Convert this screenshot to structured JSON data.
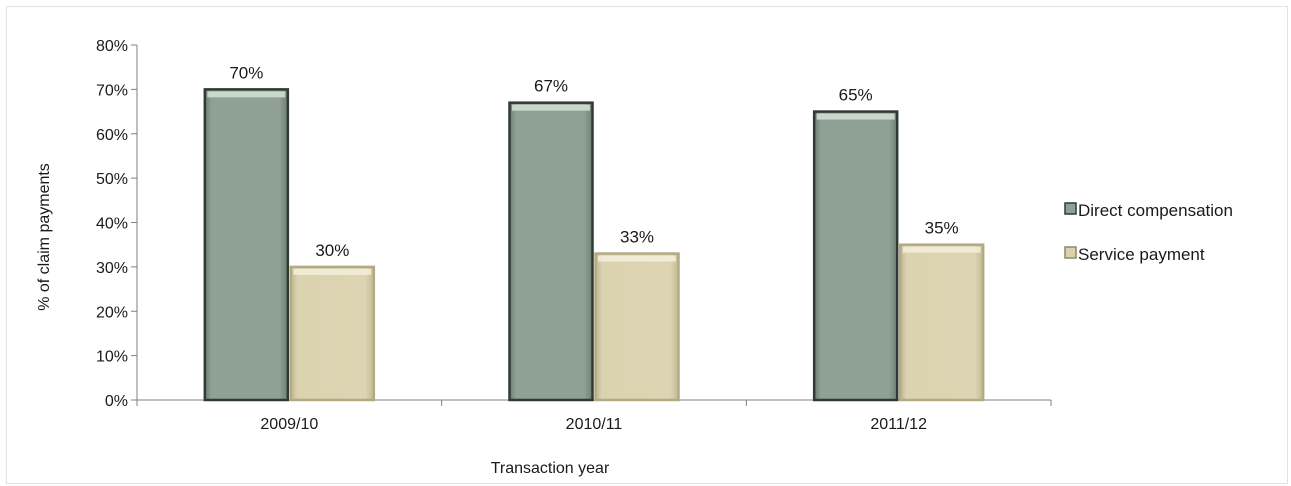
{
  "chart_data": {
    "type": "bar",
    "categories": [
      "2009/10",
      "2010/11",
      "2011/12"
    ],
    "series": [
      {
        "name": "Direct compensation",
        "values": [
          70,
          67,
          65
        ],
        "labels": [
          "70%",
          "67%",
          "65%"
        ]
      },
      {
        "name": "Service payment",
        "values": [
          30,
          33,
          35
        ],
        "labels": [
          "30%",
          "33%",
          "35%"
        ]
      }
    ],
    "title": "",
    "xlabel": "Transaction year",
    "ylabel": "% of claim payments",
    "ylim": [
      0,
      80
    ],
    "yticks": [
      0,
      10,
      20,
      30,
      40,
      50,
      60,
      70,
      80
    ],
    "ytick_labels": [
      "0%",
      "10%",
      "20%",
      "30%",
      "40%",
      "50%",
      "60%",
      "70%",
      "80%"
    ],
    "grid": false,
    "legend_position": "right",
    "colors": {
      "Direct compensation": "#8fa095",
      "Service payment": "#dbd3b0",
      "bar_edge_dark": "#2f3a33",
      "bar_edge_light": "#ffffff",
      "axis": "#808080"
    }
  }
}
